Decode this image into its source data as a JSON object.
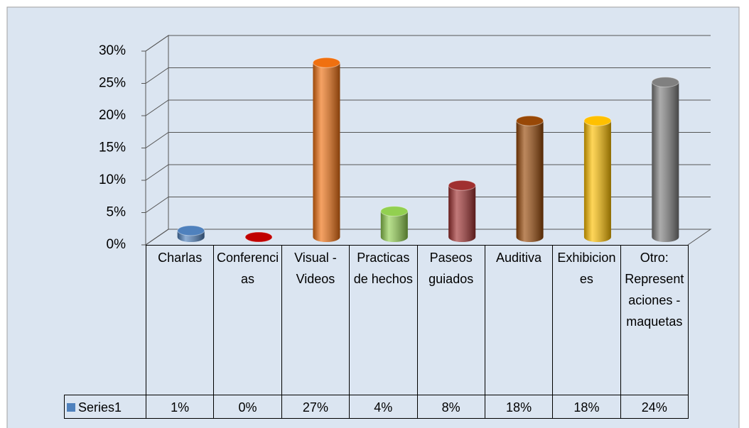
{
  "chart_data": {
    "type": "bar3d",
    "categories": [
      "Charlas",
      "Conferencias",
      "Visual - Videos",
      "Practicas de hechos",
      "Paseos guiados",
      "Auditiva",
      "Exhibiciones",
      "Otro: Representaciones - maquetas"
    ],
    "series": [
      {
        "name": "Series1",
        "color": "#4f81bd",
        "values": [
          1,
          0,
          27,
          4,
          8,
          18,
          18,
          24
        ],
        "value_labels": [
          "1%",
          "0%",
          "27%",
          "4%",
          "8%",
          "18%",
          "18%",
          "24%"
        ],
        "colors": [
          "#4f81bd",
          "#c00000",
          "#f07010",
          "#92d050",
          "#a03030",
          "#984807",
          "#ffc000",
          "#808080"
        ]
      }
    ],
    "ylim": [
      0,
      30
    ],
    "yticks": [
      {
        "value": 0,
        "label": "0%"
      },
      {
        "value": 5,
        "label": "5%"
      },
      {
        "value": 10,
        "label": "10%"
      },
      {
        "value": 15,
        "label": "15%"
      },
      {
        "value": 20,
        "label": "20%"
      },
      {
        "value": 25,
        "label": "25%"
      },
      {
        "value": 30,
        "label": "30%"
      }
    ],
    "grid": true
  }
}
